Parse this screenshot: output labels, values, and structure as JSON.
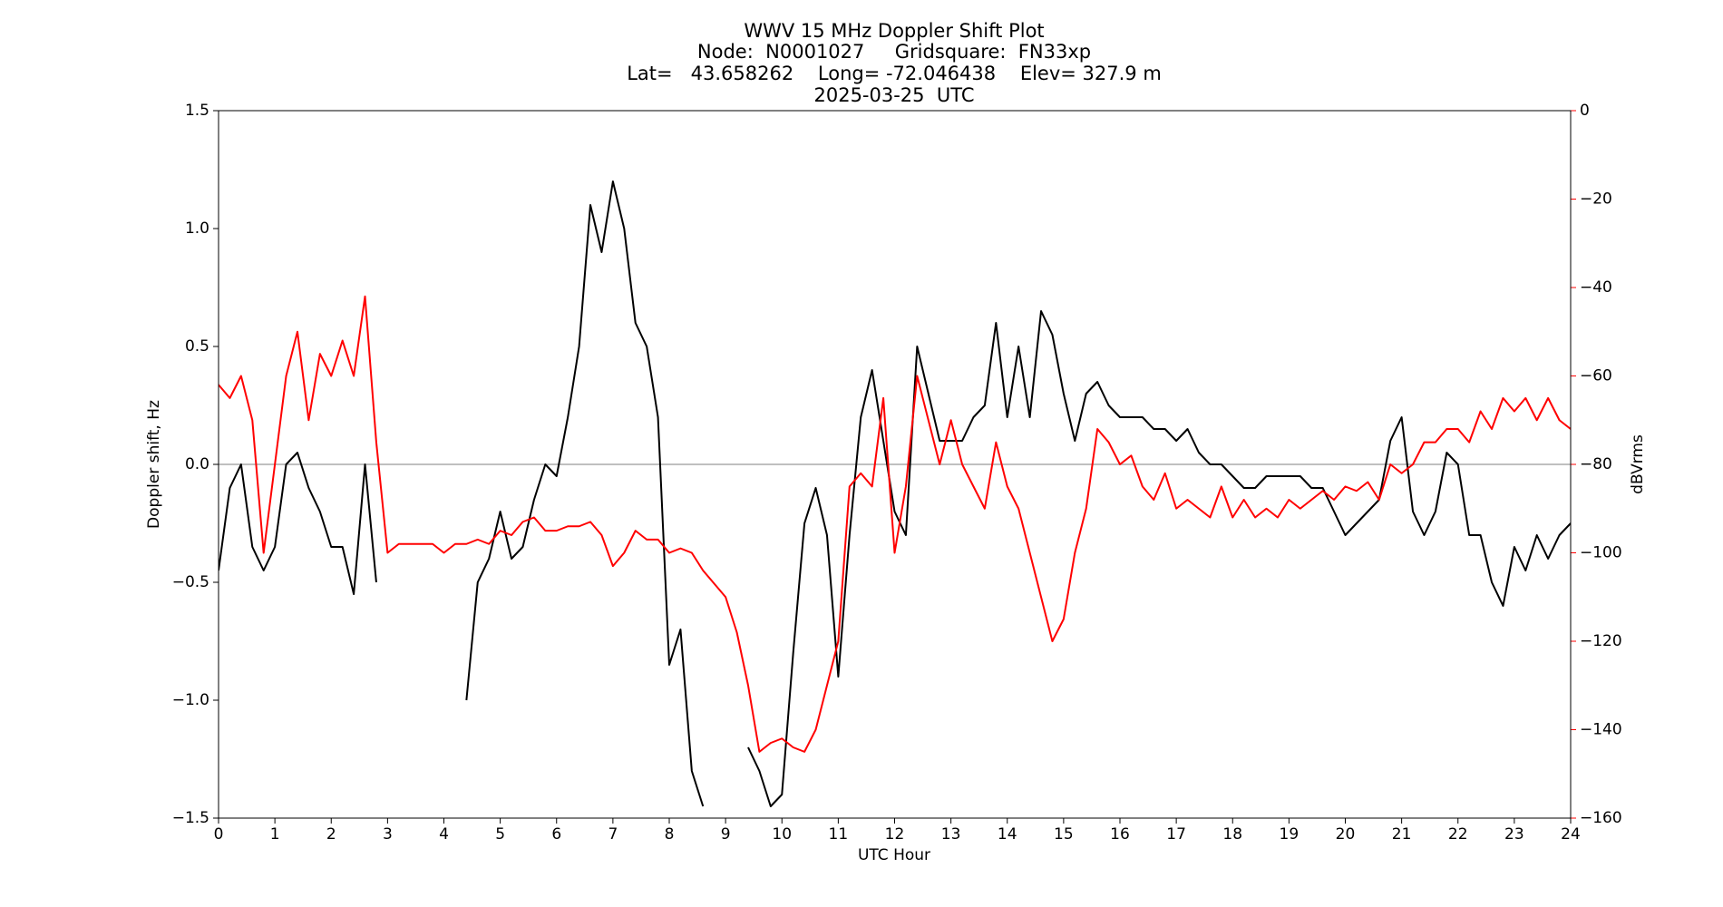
{
  "chart_data": {
    "type": "line",
    "title": [
      "WWV 15 MHz Doppler Shift Plot",
      "Node:  N0001027     Gridsquare:  FN33xp",
      "Lat=   43.658262    Long= -72.046438    Elev= 327.9 m",
      "2025-03-25  UTC"
    ],
    "xlabel": "UTC Hour",
    "ylabel": "Doppler shift, Hz",
    "y2label": "dBVrms",
    "y2color": "#ff0000",
    "x": [
      0.0,
      0.2,
      0.4,
      0.6,
      0.8,
      1.0,
      1.2,
      1.4,
      1.6,
      1.8,
      2.0,
      2.2,
      2.4,
      2.6,
      2.8,
      3.0,
      3.2,
      3.4,
      3.6,
      3.8,
      4.0,
      4.2,
      4.4,
      4.6,
      4.8,
      5.0,
      5.2,
      5.4,
      5.6,
      5.8,
      6.0,
      6.2,
      6.4,
      6.6,
      6.8,
      7.0,
      7.2,
      7.4,
      7.6,
      7.8,
      8.0,
      8.2,
      8.4,
      8.6,
      8.8,
      9.0,
      9.2,
      9.4,
      9.6,
      9.8,
      10.0,
      10.2,
      10.4,
      10.6,
      10.8,
      11.0,
      11.2,
      11.4,
      11.6,
      11.8,
      12.0,
      12.2,
      12.4,
      12.6,
      12.8,
      13.0,
      13.2,
      13.4,
      13.6,
      13.8,
      14.0,
      14.2,
      14.4,
      14.6,
      14.8,
      15.0,
      15.2,
      15.4,
      15.6,
      15.8,
      16.0,
      16.2,
      16.4,
      16.6,
      16.8,
      17.0,
      17.2,
      17.4,
      17.6,
      17.8,
      18.0,
      18.2,
      18.4,
      18.6,
      18.8,
      19.0,
      19.2,
      19.4,
      19.6,
      19.8,
      20.0,
      20.2,
      20.4,
      20.6,
      20.8,
      21.0,
      21.2,
      21.4,
      21.6,
      21.8,
      22.0,
      22.2,
      22.4,
      22.6,
      22.8,
      23.0,
      23.2,
      23.4,
      23.6,
      23.8,
      24.0
    ],
    "series": [
      {
        "color": "#000000",
        "axis": "y",
        "values": [
          -0.45,
          -0.1,
          0.0,
          -0.35,
          -0.45,
          -0.35,
          0.0,
          0.05,
          -0.1,
          -0.2,
          -0.35,
          -0.35,
          -0.55,
          0.0,
          -0.5,
          null,
          null,
          null,
          null,
          null,
          null,
          null,
          -1.0,
          -0.5,
          -0.4,
          -0.2,
          -0.4,
          -0.35,
          -0.15,
          0.0,
          -0.05,
          0.2,
          0.5,
          1.1,
          0.9,
          1.2,
          1.0,
          0.6,
          0.5,
          0.2,
          -0.85,
          -0.7,
          -1.3,
          -1.45,
          null,
          null,
          null,
          -1.2,
          -1.3,
          -1.45,
          -1.4,
          -0.8,
          -0.25,
          -0.1,
          -0.3,
          -0.9,
          -0.3,
          0.2,
          0.4,
          0.1,
          -0.2,
          -0.3,
          0.5,
          0.3,
          0.1,
          0.1,
          0.1,
          0.2,
          0.25,
          0.6,
          0.2,
          0.5,
          0.2,
          0.65,
          0.55,
          0.3,
          0.1,
          0.3,
          0.35,
          0.25,
          0.2,
          0.2,
          0.2,
          0.15,
          0.15,
          0.1,
          0.15,
          0.05,
          0.0,
          0.0,
          -0.05,
          -0.1,
          -0.1,
          -0.05,
          -0.05,
          -0.05,
          -0.05,
          -0.1,
          -0.1,
          -0.2,
          -0.3,
          -0.25,
          -0.2,
          -0.15,
          0.1,
          0.2,
          -0.2,
          -0.3,
          -0.2,
          0.05,
          0.0,
          -0.3,
          -0.3,
          -0.5,
          -0.6,
          -0.35,
          -0.45,
          -0.3,
          -0.4,
          -0.3,
          -0.25
        ]
      },
      {
        "color": "#ff0000",
        "axis": "y2",
        "values": [
          -62,
          -65,
          -60,
          -70,
          -100,
          -80,
          -60,
          -50,
          -70,
          -55,
          -60,
          -52,
          -60,
          -42,
          -75,
          -100,
          -98,
          -98,
          -98,
          -98,
          -100,
          -98,
          -98,
          -97,
          -98,
          -95,
          -96,
          -93,
          -92,
          -95,
          -95,
          -94,
          -94,
          -93,
          -96,
          -103,
          -100,
          -95,
          -97,
          -97,
          -100,
          -99,
          -100,
          -104,
          -107,
          -110,
          -118,
          -130,
          -145,
          -143,
          -142,
          -144,
          -145,
          -140,
          -130,
          -120,
          -85,
          -82,
          -85,
          -65,
          -100,
          -85,
          -60,
          -70,
          -80,
          -70,
          -80,
          -85,
          -90,
          -75,
          -85,
          -90,
          -100,
          -110,
          -120,
          -115,
          -100,
          -90,
          -72,
          -75,
          -80,
          -78,
          -85,
          -88,
          -82,
          -90,
          -88,
          -90,
          -92,
          -85,
          -92,
          -88,
          -92,
          -90,
          -92,
          -88,
          -90,
          -88,
          -86,
          -88,
          -85,
          -86,
          -84,
          -88,
          -80,
          -82,
          -80,
          -75,
          -75,
          -72,
          -72,
          -75,
          -68,
          -72,
          -65,
          -68,
          -65,
          -70,
          -65,
          -70,
          -72
        ]
      }
    ],
    "xlim": [
      0,
      24
    ],
    "xticks": [
      0,
      1,
      2,
      3,
      4,
      5,
      6,
      7,
      8,
      9,
      10,
      11,
      12,
      13,
      14,
      15,
      16,
      17,
      18,
      19,
      20,
      21,
      22,
      23,
      24
    ],
    "ylim": [
      -1.5,
      1.5
    ],
    "yticks": [
      {
        "value": -1.5,
        "label": "−1.5"
      },
      {
        "value": -1.0,
        "label": "−1.0"
      },
      {
        "value": -0.5,
        "label": "−0.5"
      },
      {
        "value": 0.0,
        "label": "0.0"
      },
      0.5,
      {
        "value": 1.0,
        "label": "1.0"
      },
      1.5
    ],
    "y2lim": [
      -160,
      0
    ],
    "y2ticks": [
      {
        "value": -160,
        "label": "−160"
      },
      {
        "value": -140,
        "label": "−140"
      },
      {
        "value": -120,
        "label": "−120"
      },
      {
        "value": -100,
        "label": "−100"
      },
      {
        "value": -80,
        "label": "−80"
      },
      {
        "value": -60,
        "label": "−60"
      },
      {
        "value": -40,
        "label": "−40"
      },
      {
        "value": -20,
        "label": "−20"
      },
      0
    ],
    "grid": false
  }
}
